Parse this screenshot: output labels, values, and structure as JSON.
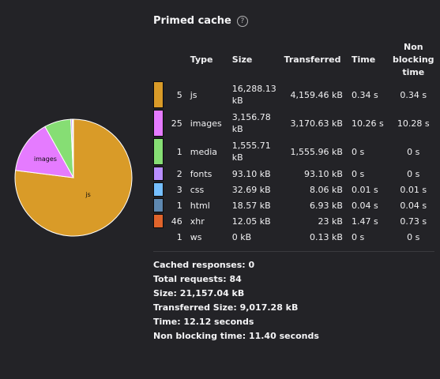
{
  "title": "Primed cache",
  "help_glyph": "?",
  "columns": {
    "type": "Type",
    "size": "Size",
    "transferred": "Transferred",
    "time": "Time",
    "non_blocking": "Non blocking time"
  },
  "rows": [
    {
      "count": "5",
      "type": "js",
      "size": "16,288.13 kB",
      "transferred": "4,159.46 kB",
      "time": "0.34 s",
      "non_blocking": "0.34 s",
      "color": "#d99b28"
    },
    {
      "count": "25",
      "type": "images",
      "size": "3,156.78 kB",
      "transferred": "3,170.63 kB",
      "time": "10.26 s",
      "non_blocking": "10.28 s",
      "color": "#e57bff"
    },
    {
      "count": "1",
      "type": "media",
      "size": "1,555.71 kB",
      "transferred": "1,555.96 kB",
      "time": "0 s",
      "non_blocking": "0 s",
      "color": "#86de74"
    },
    {
      "count": "2",
      "type": "fonts",
      "size": "93.10 kB",
      "transferred": "93.10 kB",
      "time": "0 s",
      "non_blocking": "0 s",
      "color": "#b98eff"
    },
    {
      "count": "3",
      "type": "css",
      "size": "32.69 kB",
      "transferred": "8.06 kB",
      "time": "0.01 s",
      "non_blocking": "0.01 s",
      "color": "#75bfff"
    },
    {
      "count": "1",
      "type": "html",
      "size": "18.57 kB",
      "transferred": "6.93 kB",
      "time": "0.04 s",
      "non_blocking": "0.04 s",
      "color": "#5e88b0"
    },
    {
      "count": "46",
      "type": "xhr",
      "size": "12.05 kB",
      "transferred": "23 kB",
      "time": "1.47 s",
      "non_blocking": "0.73 s",
      "color": "#e0642b"
    },
    {
      "count": "1",
      "type": "ws",
      "size": "0 kB",
      "transferred": "0.13 kB",
      "time": "0 s",
      "non_blocking": "0 s",
      "color": ""
    }
  ],
  "summary": {
    "cached": "Cached responses: 0",
    "total_requests": "Total requests: 84",
    "size": "Size: 21,157.04 kB",
    "transferred": "Transferred Size: 9,017.28 kB",
    "time": "Time: 12.12 seconds",
    "non_blocking": "Non blocking time: 11.40 seconds"
  },
  "chart_data": {
    "type": "pie",
    "title": "",
    "slices": [
      {
        "label": "js",
        "value": 16288.13,
        "color": "#d99b28",
        "show_label": true
      },
      {
        "label": "images",
        "value": 3156.78,
        "color": "#e57bff",
        "show_label": true
      },
      {
        "label": "media",
        "value": 1555.71,
        "color": "#86de74",
        "show_label": false
      },
      {
        "label": "fonts",
        "value": 93.1,
        "color": "#b98eff",
        "show_label": false
      },
      {
        "label": "css",
        "value": 32.69,
        "color": "#75bfff",
        "show_label": false
      },
      {
        "label": "html",
        "value": 18.57,
        "color": "#5e88b0",
        "show_label": false
      },
      {
        "label": "xhr",
        "value": 12.05,
        "color": "#e0642b",
        "show_label": false
      },
      {
        "label": "ws",
        "value": 0,
        "color": "#ffffff",
        "show_label": false
      }
    ]
  }
}
